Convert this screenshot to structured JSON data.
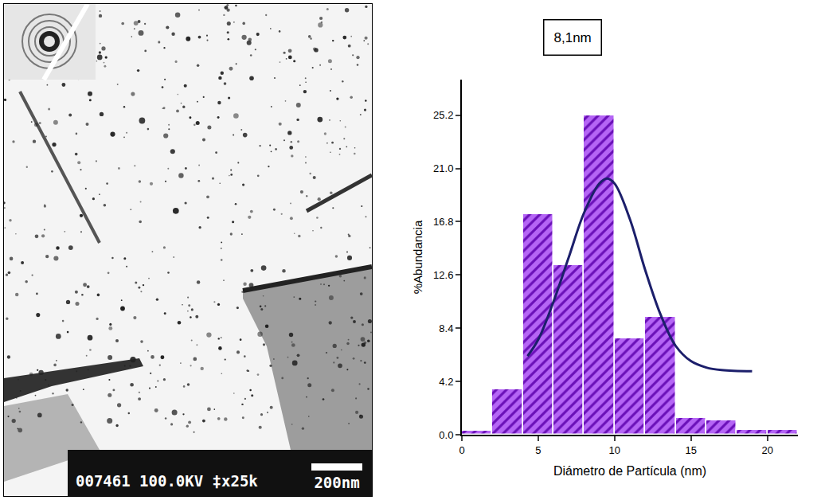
{
  "chart_data": {
    "type": "histogram",
    "annotation": "8,1nm",
    "x_label": "Diámetro de Partícula (nm)",
    "y_label": "%Abundancia",
    "bins": [
      0,
      2,
      4,
      6,
      8,
      10,
      12,
      14,
      16,
      18,
      20,
      22
    ],
    "values": [
      0.3,
      3.6,
      17.4,
      13.4,
      25.2,
      7.6,
      9.3,
      1.3,
      1.1,
      0.4,
      0.4
    ],
    "color": "#b565f5",
    "series": [
      {
        "type": "line",
        "color": "#1c1f6b",
        "x": [
          4.3,
          5,
          6,
          7,
          8,
          9,
          9.5,
          10,
          11,
          12,
          13,
          14,
          15,
          16,
          17,
          19
        ],
        "values": [
          6.2,
          7.5,
          10.5,
          14,
          17.5,
          19.8,
          20.2,
          19.8,
          17,
          13,
          9.5,
          7,
          5.8,
          5.3,
          5.1,
          5.0
        ]
      }
    ],
    "xlim": [
      0,
      22
    ],
    "xticks": [
      0,
      5,
      10,
      15,
      20
    ],
    "ylim": [
      0,
      28
    ],
    "yticks": [
      {
        "value": 0,
        "label": "0.0"
      },
      4.2,
      8.4,
      12.6,
      16.8,
      {
        "value": 21,
        "label": "21.0"
      },
      25.2
    ],
    "grid": false
  },
  "micrograph": {
    "caption": "007461 100.0KV ‡x25k",
    "scale_bar": "200nm"
  }
}
